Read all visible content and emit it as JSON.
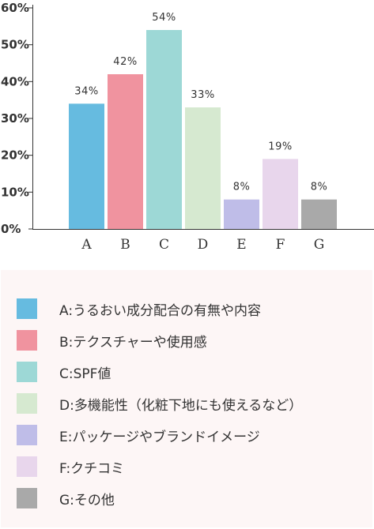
{
  "chart_data": {
    "type": "bar",
    "categories": [
      "A",
      "B",
      "C",
      "D",
      "E",
      "F",
      "G"
    ],
    "values": [
      34,
      42,
      54,
      33,
      8,
      19,
      8
    ],
    "data_labels": [
      "34%",
      "42%",
      "54%",
      "33%",
      "8%",
      "19%",
      "8%"
    ],
    "colors": [
      "#66bbe0",
      "#f0939f",
      "#9dd8d6",
      "#d6e9d0",
      "#bfbde8",
      "#e8d6ec",
      "#a9a9a9"
    ],
    "ylim": [
      0,
      60
    ],
    "yticks": [
      "0%",
      "10%",
      "20%",
      "30%",
      "40%",
      "50%",
      "60%"
    ],
    "grid": false,
    "legend_position": "bottom",
    "legend": [
      "A:うるおい成分配合の有無や内容",
      "B:テクスチャーや使用感",
      "C:SPF値",
      "D:多機能性（化粧下地にも使えるなど）",
      "E:パッケージやブランドイメージ",
      "F:クチコミ",
      "G:その他"
    ]
  }
}
